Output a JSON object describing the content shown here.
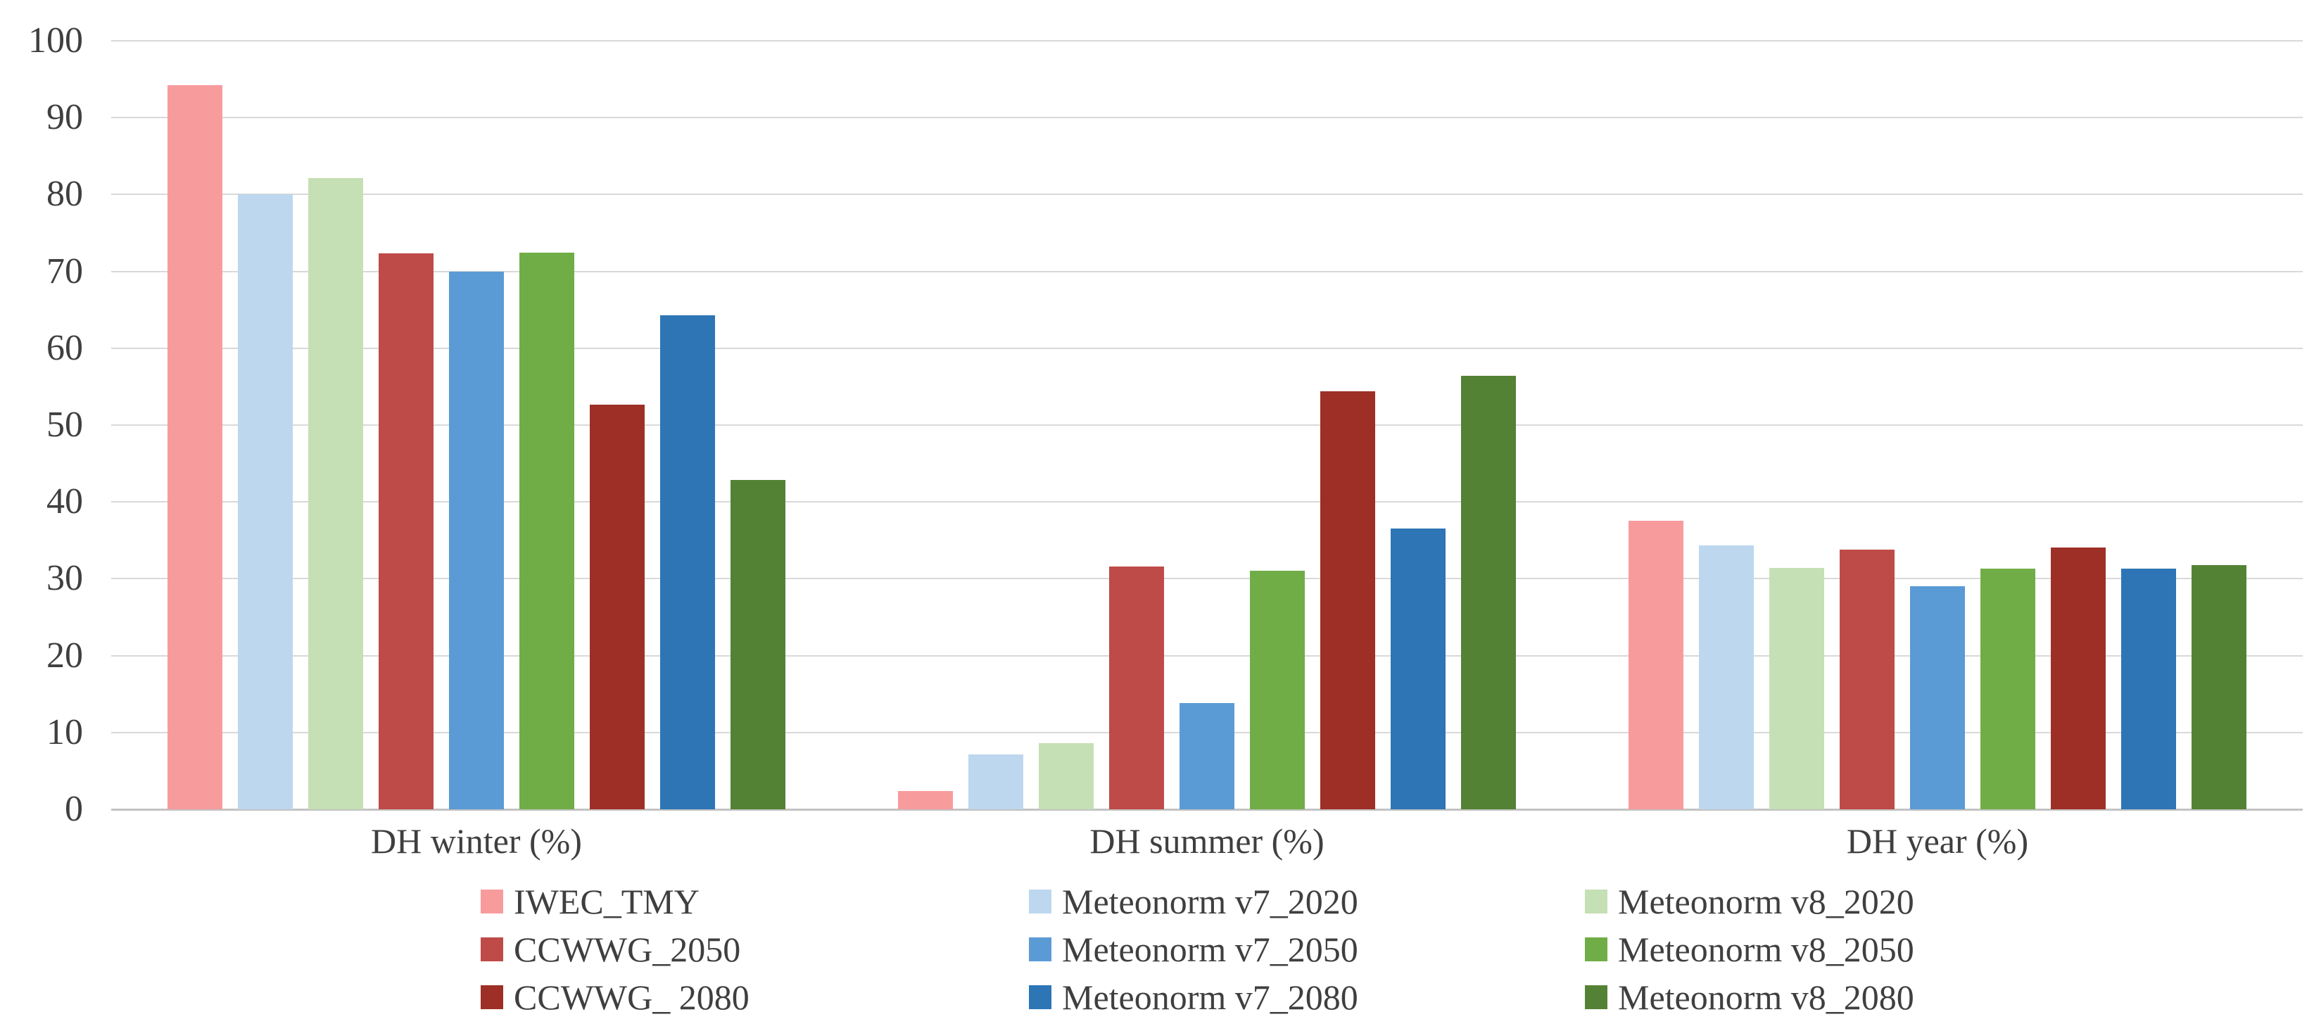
{
  "chart_data": {
    "type": "bar",
    "title": "",
    "xlabel": "",
    "ylabel": "",
    "categories": [
      "DH winter (%)",
      "DH summer (%)",
      "DH year (%)"
    ],
    "series": [
      {
        "name": "IWEC_TMY",
        "color": "#F89B9D",
        "values": [
          94.2,
          2.4,
          37.5
        ]
      },
      {
        "name": "Meteonorm v7_2020",
        "color": "#BDD7EE",
        "values": [
          80.0,
          7.1,
          34.3
        ]
      },
      {
        "name": "Meteonorm v8_2020",
        "color": "#C5E0B4",
        "values": [
          82.1,
          8.6,
          31.4
        ]
      },
      {
        "name": "CCWWG_2050",
        "color": "#BE4B48",
        "values": [
          72.3,
          31.6,
          33.8
        ]
      },
      {
        "name": "Meteonorm v7_2050",
        "color": "#5B9BD5",
        "values": [
          70.0,
          13.8,
          29.0
        ]
      },
      {
        "name": "Meteonorm v8_2050",
        "color": "#70AD47",
        "values": [
          72.4,
          31.0,
          31.3
        ]
      },
      {
        "name": "CCWWG_ 2080",
        "color": "#9E2F26",
        "values": [
          52.7,
          54.4,
          34.1
        ]
      },
      {
        "name": "Meteonorm v7_2080",
        "color": "#2E75B6",
        "values": [
          64.3,
          36.5,
          31.3
        ]
      },
      {
        "name": "Meteonorm v8_2080",
        "color": "#548235",
        "values": [
          42.9,
          56.4,
          31.8
        ]
      }
    ],
    "y_axis": {
      "min": 0,
      "max": 100,
      "step": 10,
      "tick_labels": [
        "100",
        "90",
        "80",
        "70",
        "60",
        "50",
        "40",
        "30",
        "20",
        "10",
        "0"
      ]
    },
    "grid": true,
    "legend_position": "bottom",
    "legend_columns": 3
  },
  "colors": {
    "background": "#FFFFFF",
    "gridline": "#D9D9D9",
    "axis_line": "#C3C3C3",
    "text": "#3F3F3F"
  }
}
